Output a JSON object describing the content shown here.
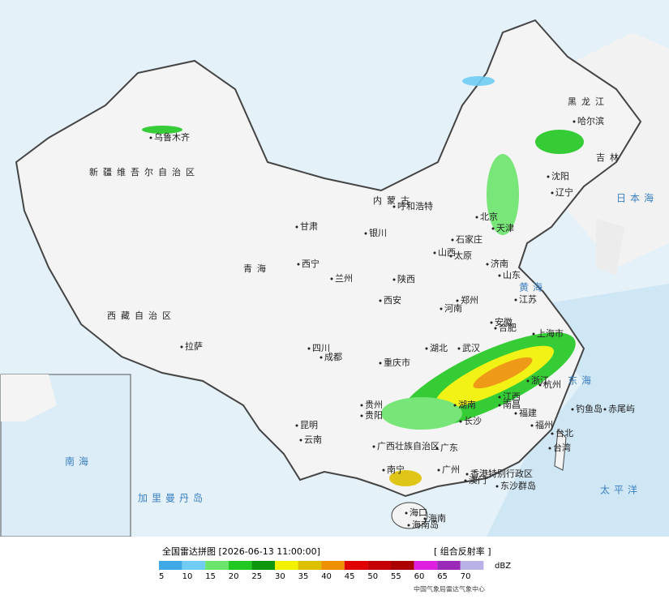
{
  "map": {
    "labels": [
      "黑龙江",
      "哈尔滨",
      "吉林",
      "沈阳",
      "辽宁",
      "乌鲁木齐",
      "新疆维吾尔自治区",
      "内蒙古",
      "呼和浩特",
      "北京",
      "天津",
      "石家庄",
      "太原",
      "山西",
      "济南",
      "山东",
      "银川",
      "甘肃",
      "青海",
      "西宁",
      "兰州",
      "陕西",
      "西安",
      "郑州",
      "河南",
      "江苏",
      "安徽",
      "合肥",
      "上海市",
      "湖北",
      "武汉",
      "四川",
      "成都",
      "重庆市",
      "西藏自治区",
      "拉萨",
      "贵州",
      "贵阳",
      "湖南",
      "长沙",
      "江西",
      "南昌",
      "浙江",
      "杭州",
      "福建",
      "福州",
      "云南",
      "昆明",
      "广西壮族自治区",
      "南宁",
      "广东",
      "广州",
      "香港特别行政区",
      "澳门",
      "台湾",
      "台北",
      "海口",
      "海南",
      "海南岛",
      "东沙群岛",
      "钓鱼岛",
      "赤尾屿"
    ],
    "seas": [
      "日本海",
      "黄海",
      "东海",
      "太平洋",
      "南海",
      "加里曼丹岛"
    ]
  },
  "legend": {
    "title": "全国雷达拼图 [2026-06-13 11:00:00]",
    "product": "[ 组合反射率 ]",
    "unit": "dBZ",
    "items": [
      {
        "value": 5,
        "color": "#3fa9e6"
      },
      {
        "value": 10,
        "color": "#6fcdf3"
      },
      {
        "value": 15,
        "color": "#6be46b"
      },
      {
        "value": 20,
        "color": "#22c822"
      },
      {
        "value": 25,
        "color": "#0f960f"
      },
      {
        "value": 30,
        "color": "#f2f200"
      },
      {
        "value": 35,
        "color": "#dcc000"
      },
      {
        "value": 40,
        "color": "#ee9000"
      },
      {
        "value": 45,
        "color": "#e00000"
      },
      {
        "value": 50,
        "color": "#c60000"
      },
      {
        "value": 55,
        "color": "#aa0000"
      },
      {
        "value": 60,
        "color": "#e020e0"
      },
      {
        "value": 65,
        "color": "#9a2ab8"
      },
      {
        "value": 70,
        "color": "#b8b2e6"
      }
    ],
    "source": "中国气象局雷达气象中心"
  }
}
